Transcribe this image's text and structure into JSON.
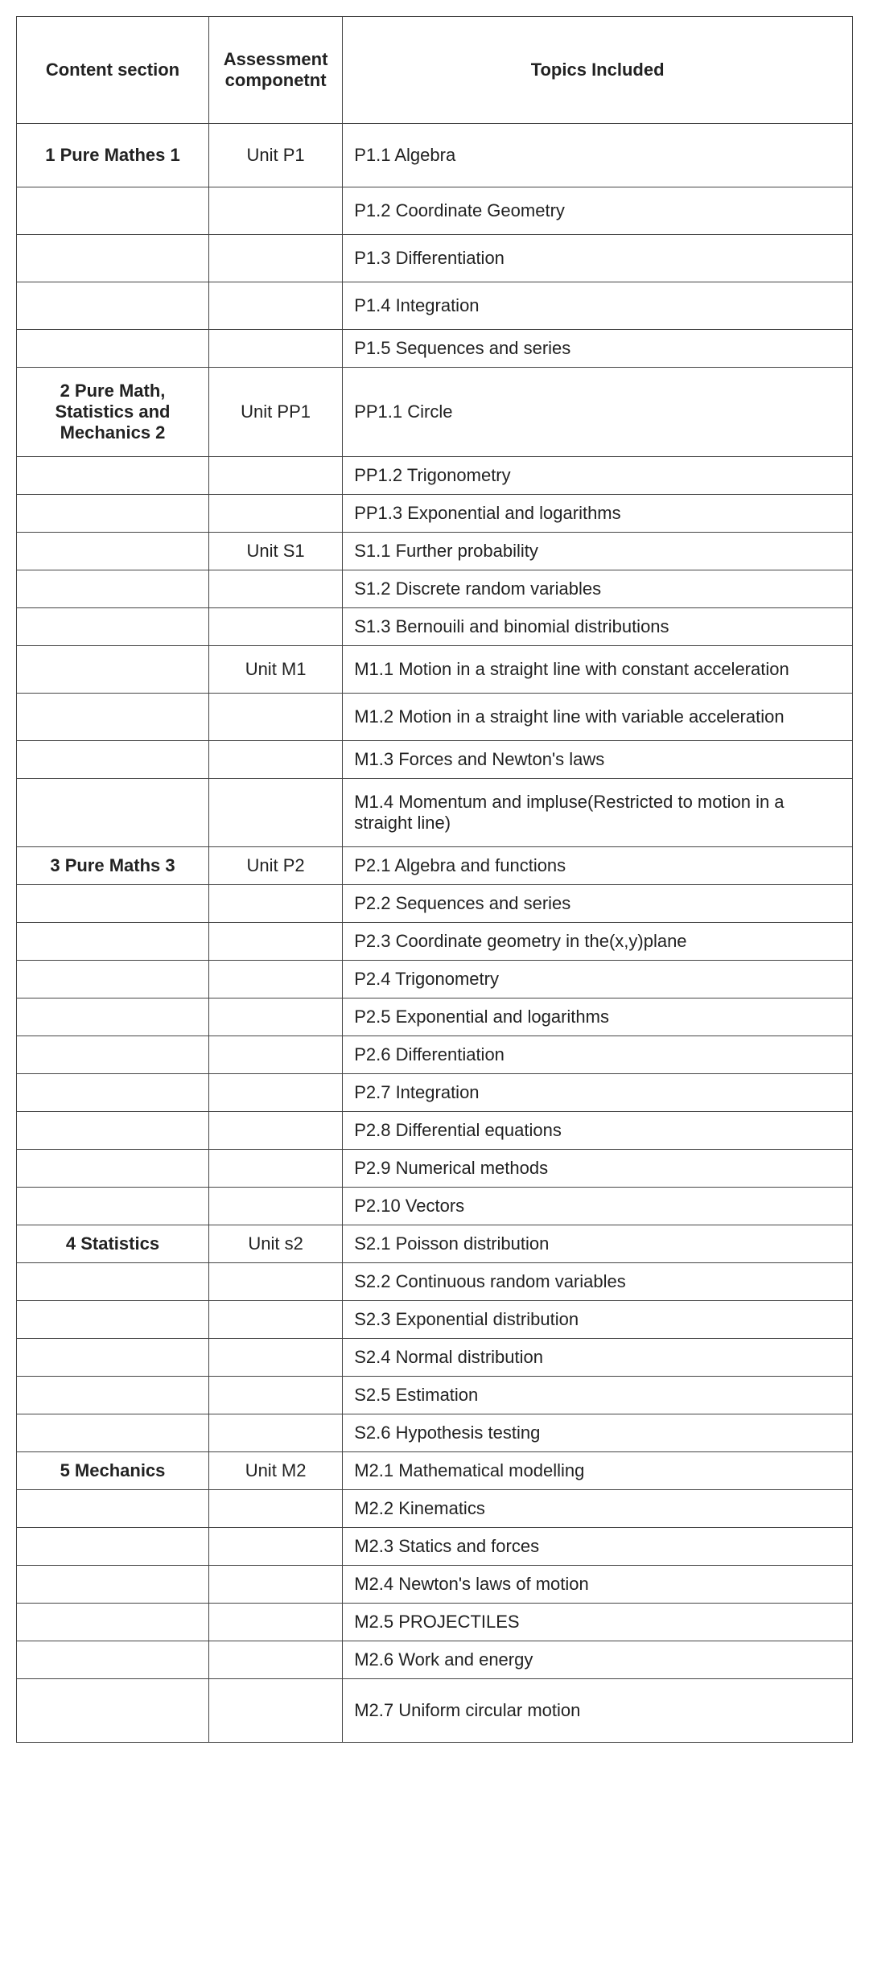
{
  "table": {
    "headers": {
      "content_section": "Content section",
      "assessment_component": "Assessment componetnt",
      "topics_included": "Topics Included"
    },
    "border_color": "#444444",
    "text_color": "#222222",
    "background_color": "#ffffff",
    "rows": [
      {
        "section": "1  Pure Mathes 1",
        "component": "Unit P1",
        "topic": "P1.1  Algebra",
        "row_class": "tall"
      },
      {
        "section": "",
        "component": "",
        "topic": "P1.2  Coordinate Geometry"
      },
      {
        "section": "",
        "component": "",
        "topic": "P1.3  Differentiation"
      },
      {
        "section": "",
        "component": "",
        "topic": "P1.4  Integration"
      },
      {
        "section": "",
        "component": "",
        "topic": "P1.5  Sequences and series",
        "row_class": "tight"
      },
      {
        "section": "2  Pure Math, Statistics and Mechanics 2",
        "component": "Unit PP1",
        "topic": "PP1.1  Circle"
      },
      {
        "section": "",
        "component": "",
        "topic": "PP1.2  Trigonometry",
        "row_class": "tight"
      },
      {
        "section": "",
        "component": "",
        "topic": "PP1.3 Exponential and logarithms",
        "row_class": "tight"
      },
      {
        "section": "",
        "component": "Unit S1",
        "topic": "S1.1  Further probability",
        "row_class": "tight"
      },
      {
        "section": "",
        "component": "",
        "topic": "S1.2  Discrete random variables",
        "row_class": "tight"
      },
      {
        "section": "",
        "component": "",
        "topic": "S1.3  Bernouili and binomial distributions",
        "row_class": "tight"
      },
      {
        "section": "",
        "component": "Unit M1",
        "topic": "M1.1  Motion in a straight line with constant acceleration"
      },
      {
        "section": "",
        "component": "",
        "topic": "M1.2  Motion in a straight line with variable acceleration"
      },
      {
        "section": "",
        "component": "",
        "topic": "M1.3  Forces and Newton's laws",
        "row_class": "tight"
      },
      {
        "section": "",
        "component": "",
        "topic": "M1.4  Momentum and impluse(Restricted to motion in a straight line)"
      },
      {
        "section": "3  Pure Maths 3",
        "component": "Unit P2",
        "topic": "P2.1  Algebra and functions",
        "row_class": "tight"
      },
      {
        "section": "",
        "component": "",
        "topic": "P2.2  Sequences and series",
        "row_class": "tight"
      },
      {
        "section": "",
        "component": "",
        "topic": "P2.3  Coordinate geometry in the(x,y)plane",
        "row_class": "tight"
      },
      {
        "section": "",
        "component": "",
        "topic": "P2.4  Trigonometry",
        "row_class": "tight"
      },
      {
        "section": "",
        "component": "",
        "topic": "P2.5  Exponential and logarithms",
        "row_class": "tight"
      },
      {
        "section": "",
        "component": "",
        "topic": "P2.6  Differentiation",
        "row_class": "tight"
      },
      {
        "section": "",
        "component": "",
        "topic": "P2.7  Integration",
        "row_class": "tight"
      },
      {
        "section": "",
        "component": "",
        "topic": "P2.8  Differential equations",
        "row_class": "tight"
      },
      {
        "section": "",
        "component": "",
        "topic": "P2.9  Numerical methods",
        "row_class": "tight"
      },
      {
        "section": "",
        "component": "",
        "topic": "P2.10  Vectors",
        "row_class": "tight"
      },
      {
        "section": "4  Statistics",
        "component": "Unit s2",
        "topic": "S2.1  Poisson distribution",
        "row_class": "tight"
      },
      {
        "section": "",
        "component": "",
        "topic": "S2.2  Continuous random variables",
        "row_class": "tight"
      },
      {
        "section": "",
        "component": "",
        "topic": "S2.3  Exponential distribution",
        "row_class": "tight"
      },
      {
        "section": "",
        "component": "",
        "topic": "S2.4  Normal distribution",
        "row_class": "tight"
      },
      {
        "section": "",
        "component": "",
        "topic": "S2.5  Estimation",
        "row_class": "tight"
      },
      {
        "section": "",
        "component": "",
        "topic": "S2.6  Hypothesis testing",
        "row_class": "tight"
      },
      {
        "section": "5  Mechanics",
        "component": "Unit M2",
        "topic": "M2.1  Mathematical modelling",
        "row_class": "tight"
      },
      {
        "section": "",
        "component": "",
        "topic": "M2.2  Kinematics",
        "row_class": "tight"
      },
      {
        "section": "",
        "component": "",
        "topic": "M2.3  Statics and forces",
        "row_class": "tight"
      },
      {
        "section": "",
        "component": "",
        "topic": "M2.4  Newton's laws of motion",
        "row_class": "tight"
      },
      {
        "section": "",
        "component": "",
        "topic": "M2.5  PROJECTILES",
        "row_class": "tight"
      },
      {
        "section": "",
        "component": "",
        "topic": "M2.6  Work and energy",
        "row_class": "tight"
      },
      {
        "section": "",
        "component": "",
        "topic": "M2.7  Uniform circular motion",
        "row_class": "tall"
      }
    ]
  }
}
